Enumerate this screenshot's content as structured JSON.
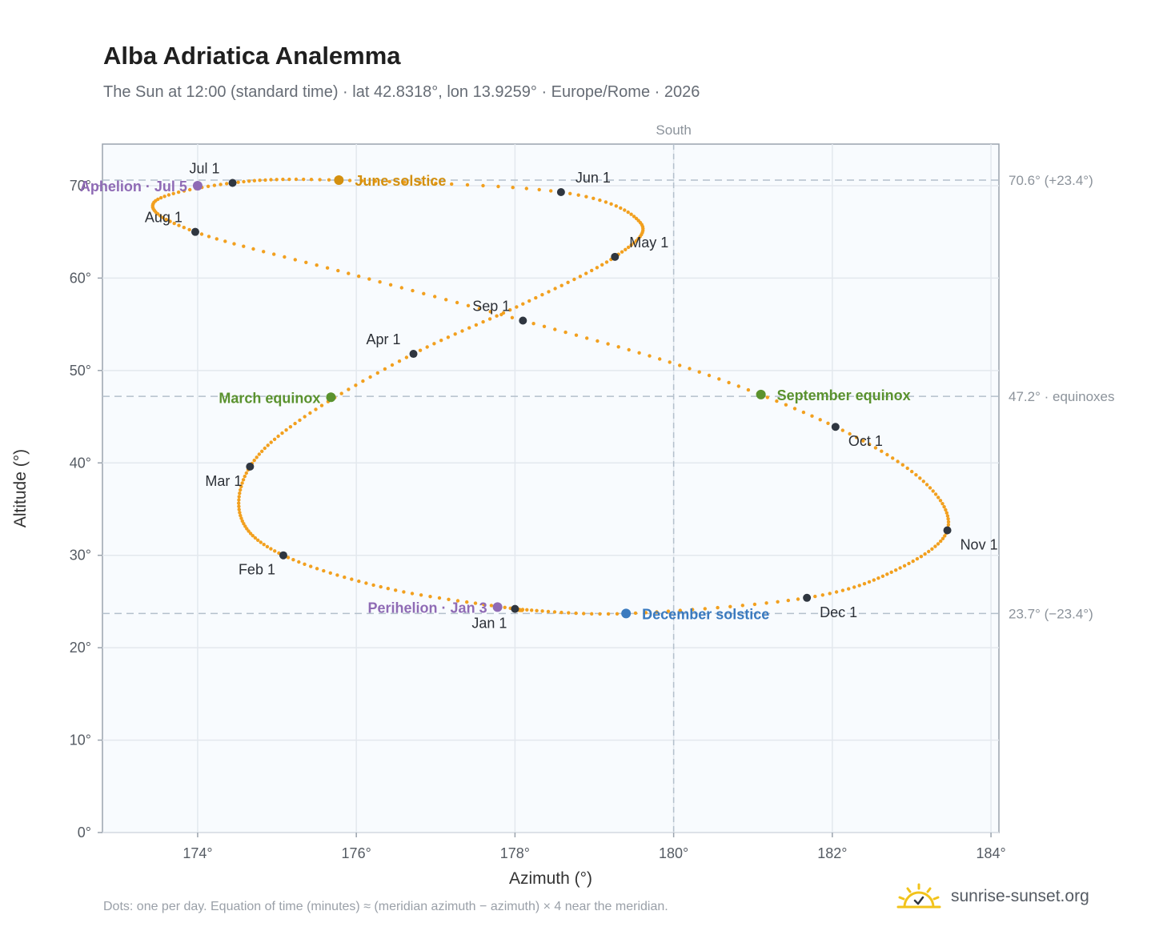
{
  "title": "Alba Adriatica Analemma",
  "subtitle": "The Sun at 12:00 (standard time) · lat 42.8318°, lon 13.9259° · Europe/Rome · 2026",
  "footnote": "Dots: one per day. Equation of time (minutes) ≈ (meridian azimuth − azimuth) × 4 near the meridian.",
  "brand": {
    "text": "sunrise-sunset.org",
    "icon": "sun-logo-icon",
    "color": "#f2c31b"
  },
  "chart_data": {
    "type": "scatter",
    "xlabel": "Azimuth (°)",
    "ylabel": "Altitude (°)",
    "xlim": [
      172.8,
      184.1
    ],
    "ylim": [
      0,
      74.5
    ],
    "xticks": [
      174,
      176,
      178,
      180,
      182,
      184
    ],
    "yticks": [
      0,
      10,
      20,
      30,
      40,
      50,
      60,
      70
    ],
    "x_tick_format": "{v}°",
    "y_tick_format": "{v}°",
    "grid": true,
    "south_label": "South",
    "meridian_azimuth": 180,
    "path_color": "#f2a01f",
    "month_point_color": "#2f3640",
    "ref_lines": [
      {
        "altitude": 70.6,
        "label": "70.6° (+23.4°)"
      },
      {
        "altitude": 47.2,
        "label": "47.2° · equinoxes"
      },
      {
        "altitude": 23.7,
        "label": "23.7° (−23.4°)"
      }
    ],
    "month_points": [
      {
        "label": "Jan 1",
        "az": 178.0,
        "alt": 24.2,
        "pos": "below-left"
      },
      {
        "label": "Feb 1",
        "az": 175.08,
        "alt": 30.0,
        "pos": "below-left"
      },
      {
        "label": "Mar 1",
        "az": 174.66,
        "alt": 39.6,
        "pos": "below-left"
      },
      {
        "label": "Apr 1",
        "az": 176.72,
        "alt": 51.8,
        "pos": "above-left"
      },
      {
        "label": "May 1",
        "az": 179.26,
        "alt": 62.3,
        "pos": "above-right"
      },
      {
        "label": "Jun 1",
        "az": 178.58,
        "alt": 69.3,
        "pos": "above-right"
      },
      {
        "label": "Jul 1",
        "az": 174.44,
        "alt": 70.3,
        "pos": "above-left"
      },
      {
        "label": "Aug 1",
        "az": 173.97,
        "alt": 65.0,
        "pos": "above-left"
      },
      {
        "label": "Sep 1",
        "az": 178.1,
        "alt": 55.4,
        "pos": "above-left"
      },
      {
        "label": "Oct 1",
        "az": 182.04,
        "alt": 43.9,
        "pos": "below-right"
      },
      {
        "label": "Nov 1",
        "az": 183.45,
        "alt": 32.7,
        "pos": "below-right"
      },
      {
        "label": "Dec 1",
        "az": 181.68,
        "alt": 25.4,
        "pos": "below-right"
      }
    ],
    "events": [
      {
        "label": "June solstice",
        "az": 175.78,
        "alt": 70.6,
        "color": "#d4900f",
        "pos": "right"
      },
      {
        "label": "Aphelion · Jul 5",
        "az": 174.0,
        "alt": 70.0,
        "color": "#8f6bb5",
        "pos": "left"
      },
      {
        "label": "March equinox",
        "az": 175.68,
        "alt": 47.1,
        "color": "#5a922e",
        "pos": "left"
      },
      {
        "label": "September equinox",
        "az": 181.1,
        "alt": 47.4,
        "color": "#5a922e",
        "pos": "right"
      },
      {
        "label": "Perihelion · Jan 3",
        "az": 177.78,
        "alt": 24.4,
        "color": "#8f6bb5",
        "pos": "left"
      },
      {
        "label": "December solstice",
        "az": 179.4,
        "alt": 23.7,
        "color": "#3a7abf",
        "pos": "right"
      }
    ],
    "analemma_path_by_date": [
      {
        "date": "Jan 1",
        "az": 178.0,
        "alt": 24.2
      },
      {
        "date": "Jan 16",
        "az": 176.4,
        "alt": 26.4
      },
      {
        "date": "Feb 1",
        "az": 175.08,
        "alt": 30.0
      },
      {
        "date": "Feb 15",
        "az": 174.55,
        "alt": 34.0
      },
      {
        "date": "Mar 1",
        "az": 174.66,
        "alt": 39.6
      },
      {
        "date": "Mar 16",
        "az": 175.35,
        "alt": 45.0
      },
      {
        "date": "Apr 1",
        "az": 176.72,
        "alt": 51.8
      },
      {
        "date": "Apr 16",
        "az": 178.1,
        "alt": 57.2
      },
      {
        "date": "May 1",
        "az": 179.26,
        "alt": 62.3
      },
      {
        "date": "May 16",
        "az": 179.58,
        "alt": 66.0
      },
      {
        "date": "Jun 1",
        "az": 178.58,
        "alt": 69.3
      },
      {
        "date": "Jun 21",
        "az": 175.78,
        "alt": 70.6
      },
      {
        "date": "Jul 1",
        "az": 174.44,
        "alt": 70.3
      },
      {
        "date": "Jul 16",
        "az": 173.45,
        "alt": 68.2
      },
      {
        "date": "Aug 1",
        "az": 173.97,
        "alt": 65.0
      },
      {
        "date": "Aug 16",
        "az": 175.9,
        "alt": 60.5
      },
      {
        "date": "Sep 1",
        "az": 178.1,
        "alt": 55.4
      },
      {
        "date": "Sep 16",
        "az": 180.2,
        "alt": 50.2
      },
      {
        "date": "Oct 1",
        "az": 182.04,
        "alt": 43.9
      },
      {
        "date": "Oct 16",
        "az": 183.15,
        "alt": 38.0
      },
      {
        "date": "Nov 1",
        "az": 183.45,
        "alt": 32.7
      },
      {
        "date": "Nov 16",
        "az": 182.8,
        "alt": 28.4
      },
      {
        "date": "Dec 1",
        "az": 181.68,
        "alt": 25.4
      },
      {
        "date": "Dec 21",
        "az": 179.4,
        "alt": 23.7
      },
      {
        "date": "Dec 31",
        "az": 178.05,
        "alt": 24.15
      }
    ]
  }
}
